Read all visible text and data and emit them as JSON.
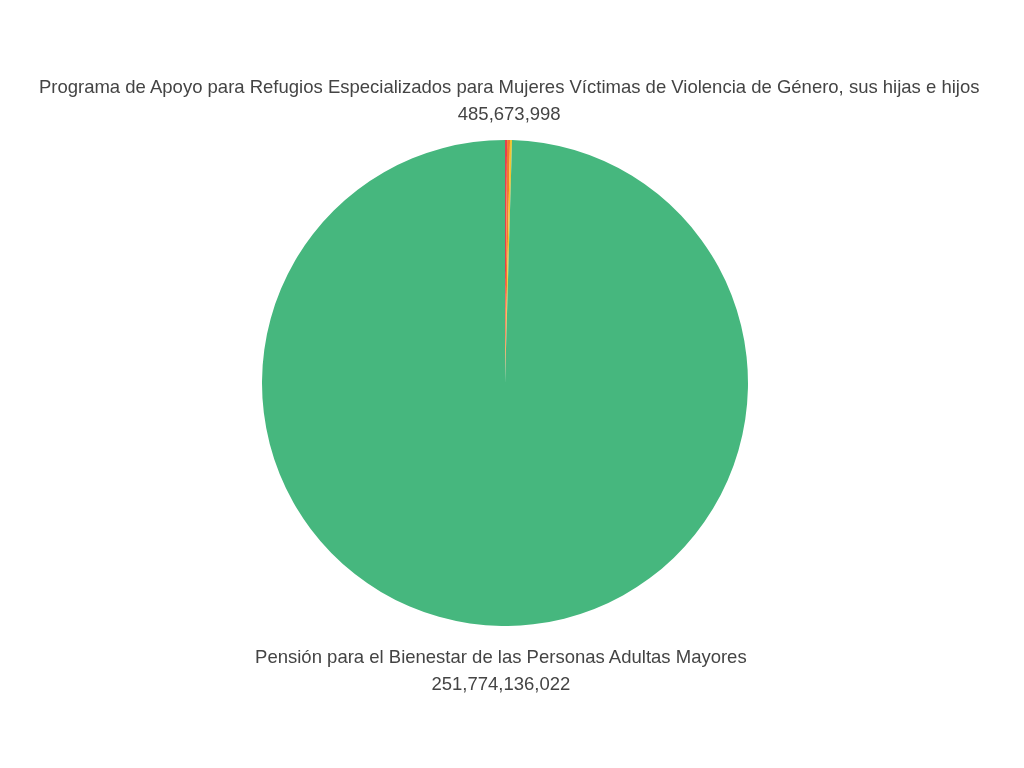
{
  "chart_data": {
    "type": "pie",
    "categories": [
      null,
      "Programa de Apoyo para Refugios Especializados para Mujeres Víctimas de Violencia de Género, sus hijas e hijos",
      null,
      "Pensión para el Bienestar de las Personas Adultas Mayores"
    ],
    "values": [
      350000000,
      485673998,
      330000000,
      251774136022
    ],
    "value_labels": [
      null,
      "485,673,998",
      null,
      "251,774,136,022"
    ],
    "colors": [
      "#e5404f",
      "#f47a2b",
      "#f2c530",
      "#46b77e"
    ]
  }
}
